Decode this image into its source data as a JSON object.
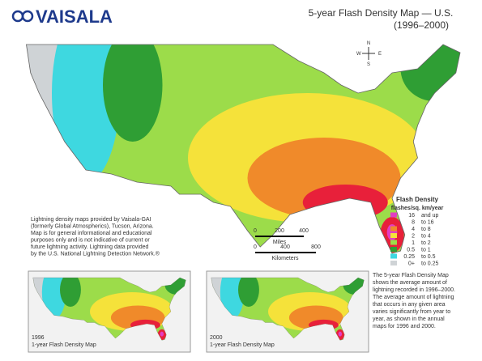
{
  "logo": "VAISALA",
  "title": [
    "5-year Flash Density Map — U.S.",
    "(1996–2000)"
  ],
  "compass": {
    "n": "N",
    "s": "S",
    "e": "E",
    "w": "W"
  },
  "note": [
    "Lightning density maps provided by Vaisala-GAI",
    "(formerly Global Atmospherics), Tucson, Arizona.",
    "Map is for general informational and educational",
    "purposes only and is not indicative of current or",
    "future lightning activity. Lightning data provided",
    "by the U.S. National Lightning Detection Network.®"
  ],
  "scale": {
    "miles": [
      "0",
      "200",
      "400"
    ],
    "miles_label": "Miles",
    "km": [
      "0",
      "400",
      "800"
    ],
    "km_label": "Kilometers"
  },
  "legend": {
    "title": "Flash Density",
    "subtitle": "flashes/sq. km/year",
    "rows": [
      {
        "from": "16",
        "to": "and up",
        "color": "#e23ec4"
      },
      {
        "from": "8",
        "to": "to 16",
        "color": "#e8203a"
      },
      {
        "from": "4",
        "to": "to 8",
        "color": "#f08a2a"
      },
      {
        "from": "2",
        "to": "to 4",
        "color": "#f5e23a"
      },
      {
        "from": "1",
        "to": "to 2",
        "color": "#9cdc4a"
      },
      {
        "from": "0.5",
        "to": "to 1",
        "color": "#2f9e34"
      },
      {
        "from": "0.25",
        "to": "to 0.5",
        "color": "#3ed8e0"
      },
      {
        "from": "0+",
        "to": "to 0.25",
        "color": "#cfd3d6"
      }
    ]
  },
  "description": [
    "The 5-year Flash Density Map",
    "shows the average amount of",
    "lightning recorded in 1996–2000.",
    "The average amount of lightning",
    "that occurs in any given area",
    "varies significantly from year to",
    "year, as shown in the annual",
    "maps for 1996 and 2000."
  ],
  "insets": [
    {
      "year": "1996",
      "caption": "1-year Flash Density Map"
    },
    {
      "year": "2000",
      "caption": "1-year Flash Density Map"
    }
  ]
}
